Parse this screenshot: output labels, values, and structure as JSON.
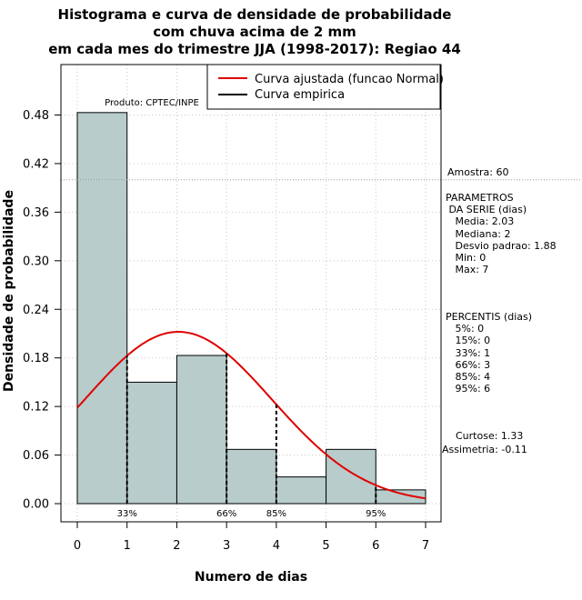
{
  "chart_data": {
    "type": "bar",
    "title_lines": [
      "Histograma e curva de densidade de probabilidade",
      "com chuva acima de 2 mm",
      "em cada mes do trimestre JJA (1998-2017): Regiao 44"
    ],
    "xlabel": "Numero de dias",
    "ylabel": "Densidade de probabilidade",
    "xlim": [
      -0.25,
      7.25
    ],
    "ylim": [
      0,
      0.54
    ],
    "x_ticks": [
      0,
      1,
      2,
      3,
      4,
      5,
      6,
      7
    ],
    "y_ticks": [
      "0.00",
      "0.06",
      "0.12",
      "0.18",
      "0.24",
      "0.30",
      "0.36",
      "0.42",
      "0.48"
    ],
    "bins": [
      [
        0,
        1
      ],
      [
        1,
        2
      ],
      [
        2,
        3
      ],
      [
        3,
        4
      ],
      [
        4,
        5
      ],
      [
        5,
        6
      ],
      [
        6,
        7
      ]
    ],
    "values": [
      0.483,
      0.15,
      0.183,
      0.067,
      0.033,
      0.067,
      0.017
    ],
    "bar_color": "#b7cccb",
    "grid": true,
    "hline": 0.4,
    "normal_curve": {
      "name": "Curva ajustada (funcao Normal)",
      "mean": 2.03,
      "sd": 1.88,
      "color": "#e00000"
    },
    "empirical_curve": {
      "name": "Curva empirica",
      "color": "#000000"
    },
    "percentile_lines": [
      {
        "x": 1,
        "label": "33%"
      },
      {
        "x": 3,
        "label": "66%"
      },
      {
        "x": 4,
        "label": "85%"
      },
      {
        "x": 6,
        "label": "95%"
      }
    ],
    "product_label": "Produto: CPTEC/INPE",
    "legend_position": "top-right"
  },
  "stats": {
    "amostra": "Amostra: 60",
    "parametros": "PARAMETROS\n DA SERIE (dias)\n   Media: 2.03\n   Mediana: 2\n   Desvio padrao: 1.88\n   Min: 0\n   Max: 7",
    "percentis": "PERCENTIS (dias)\n   5%: 0\n   15%: 0\n   33%: 1\n   66%: 3\n   85%: 4\n   95%: 6",
    "curtose": "Curtose: 1.33",
    "assimetria": "Assimetria: -0.11"
  }
}
